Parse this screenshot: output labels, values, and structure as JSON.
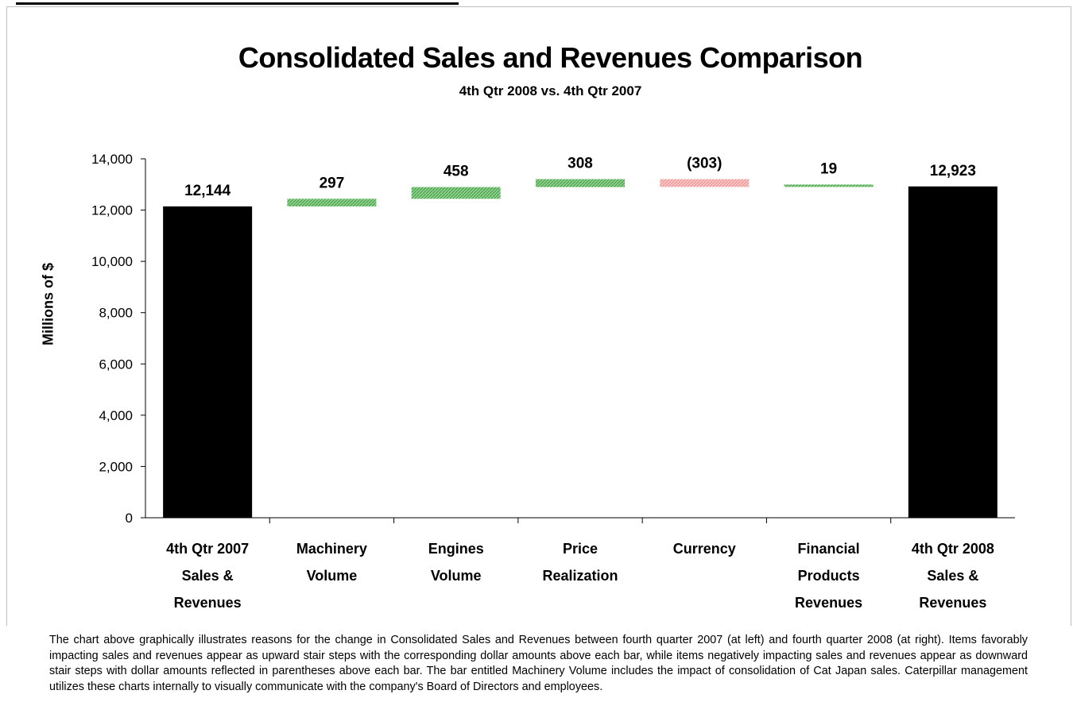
{
  "chart_data": {
    "type": "bar",
    "title": "Consolidated Sales and Revenues Comparison",
    "subtitle": "4th Qtr 2008 vs. 4th Qtr 2007",
    "ylabel": "Millions of $",
    "ylim": [
      0,
      14000
    ],
    "yticks": [
      0,
      2000,
      4000,
      6000,
      8000,
      10000,
      12000,
      14000
    ],
    "ytick_labels": [
      "0",
      "2,000",
      "4,000",
      "6,000",
      "8,000",
      "10,000",
      "12,000",
      "14,000"
    ],
    "categories": [
      [
        "4th Qtr 2007",
        "Sales &",
        "Revenues"
      ],
      [
        "Machinery",
        "Volume"
      ],
      [
        "Engines",
        "Volume"
      ],
      [
        "Price",
        "Realization"
      ],
      [
        "Currency"
      ],
      [
        "Financial",
        "Products",
        "Revenues"
      ],
      [
        "4th Qtr 2008",
        "Sales &",
        "Revenues"
      ]
    ],
    "values": [
      12144,
      297,
      458,
      308,
      -303,
      19,
      12923
    ],
    "kinds": [
      "total",
      "delta",
      "delta",
      "delta",
      "delta",
      "delta",
      "total"
    ],
    "data_labels": [
      "12,144",
      "297",
      "458",
      "308",
      "(303)",
      "19",
      "12,923"
    ],
    "colors": {
      "total": "#000000",
      "increase": "#6bbf6b",
      "decrease": "#f4a6a6"
    },
    "grid": false,
    "legend": "none"
  },
  "footnote": "The chart above graphically illustrates reasons for the change in Consolidated Sales and Revenues between fourth quarter 2007 (at left) and fourth quarter 2008 (at right).  Items favorably impacting sales and revenues appear as upward stair steps with the corresponding dollar amounts above each bar, while items negatively impacting sales and revenues appear as downward stair steps with dollar amounts reflected in parentheses above each bar.  The bar entitled Machinery Volume includes the impact of consolidation of Cat Japan sales.  Caterpillar management utilizes these charts internally to visually communicate with the company's Board of Directors and employees."
}
